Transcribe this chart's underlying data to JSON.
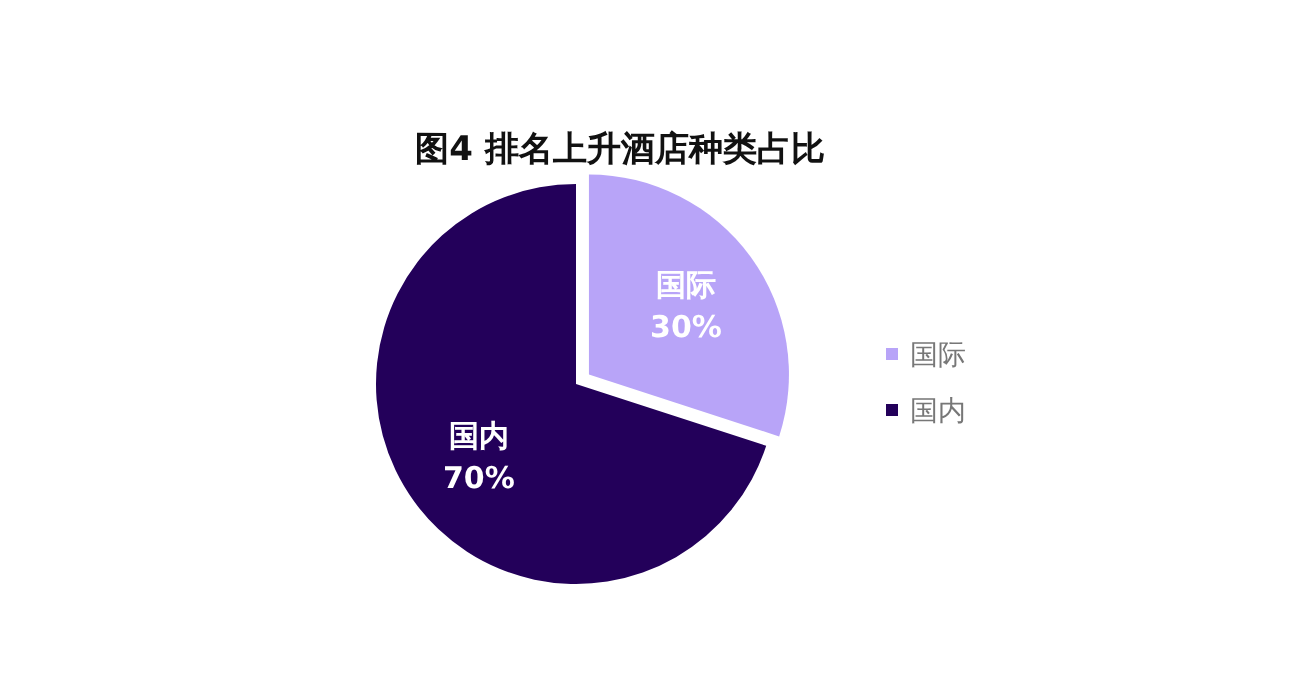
{
  "chart_data": {
    "type": "pie",
    "title": "图4 排名上升酒店种类占比",
    "categories": [
      "国际",
      "国内"
    ],
    "values": [
      30,
      70
    ],
    "colors": [
      "#b8a4f8",
      "#23005a"
    ],
    "value_labels": [
      "30%",
      "70%"
    ],
    "legend": "right"
  }
}
